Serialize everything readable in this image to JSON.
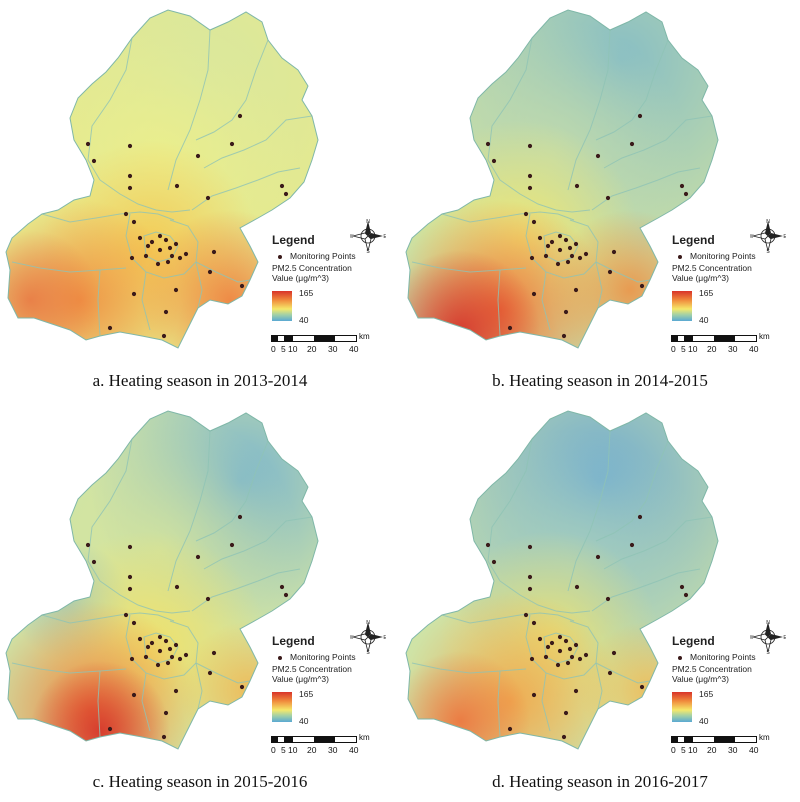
{
  "panels": [
    {
      "caption": "a. Heating season in 2013-2014"
    },
    {
      "caption": "b. Heating season in 2014-2015"
    },
    {
      "caption": "c. Heating season in 2015-2016"
    },
    {
      "caption": "d. Heating season in 2016-2017"
    }
  ],
  "legend": {
    "title": "Legend",
    "points_label": "Monitoring Points",
    "field_line1": "PM2.5 Concentration",
    "field_line2": "Value (μg/m^3)",
    "max": "165",
    "min": "40"
  },
  "scalebar": {
    "unit": "km",
    "ticks": [
      "0",
      "5",
      "10",
      "20",
      "30",
      "40"
    ]
  },
  "compass": {
    "n": "N",
    "s": "S",
    "e": "E",
    "w": "W"
  },
  "colors": {
    "high": "#d9342a",
    "mid_high": "#f08a3c",
    "mid": "#f5e86a",
    "mid_low": "#9fcfa9",
    "low": "#5aa9d3",
    "point": "#3a1a1a",
    "boundary": "#8fc3b5"
  }
}
